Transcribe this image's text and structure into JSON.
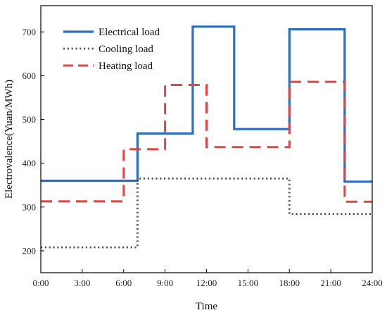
{
  "chart_data": {
    "type": "line",
    "step": true,
    "title": "",
    "xlabel": "Time",
    "ylabel": "Electrovalence(Yuan/MWh)",
    "xlim": [
      0,
      24
    ],
    "ylim": [
      150,
      760
    ],
    "xticks": [
      0,
      3,
      6,
      9,
      12,
      15,
      18,
      21,
      24
    ],
    "xtick_labels": [
      "0:00",
      "3:00",
      "6:00",
      "9:00",
      "12:00",
      "15:00",
      "18:00",
      "21:00",
      "24:00"
    ],
    "yticks": [
      200,
      300,
      400,
      500,
      600,
      700
    ],
    "ytick_labels": [
      "200",
      "300",
      "400",
      "500",
      "600",
      "700"
    ],
    "grid": false,
    "legend_position": "top-left",
    "series": [
      {
        "name": "Electrical load",
        "color": "#2a6ebf",
        "style": "solid",
        "x": [
          0,
          7,
          11,
          14,
          18,
          22
        ],
        "values": [
          360,
          468,
          712,
          478,
          706,
          358
        ]
      },
      {
        "name": "Cooling load",
        "color": "#555555",
        "style": "dotted",
        "x": [
          0,
          7,
          18
        ],
        "values": [
          208,
          365,
          284
        ]
      },
      {
        "name": "Heating load",
        "color": "#e04545",
        "style": "dashed",
        "x": [
          0,
          6,
          9,
          12,
          18,
          22
        ],
        "values": [
          313,
          432,
          579,
          437,
          586,
          312
        ]
      }
    ]
  }
}
